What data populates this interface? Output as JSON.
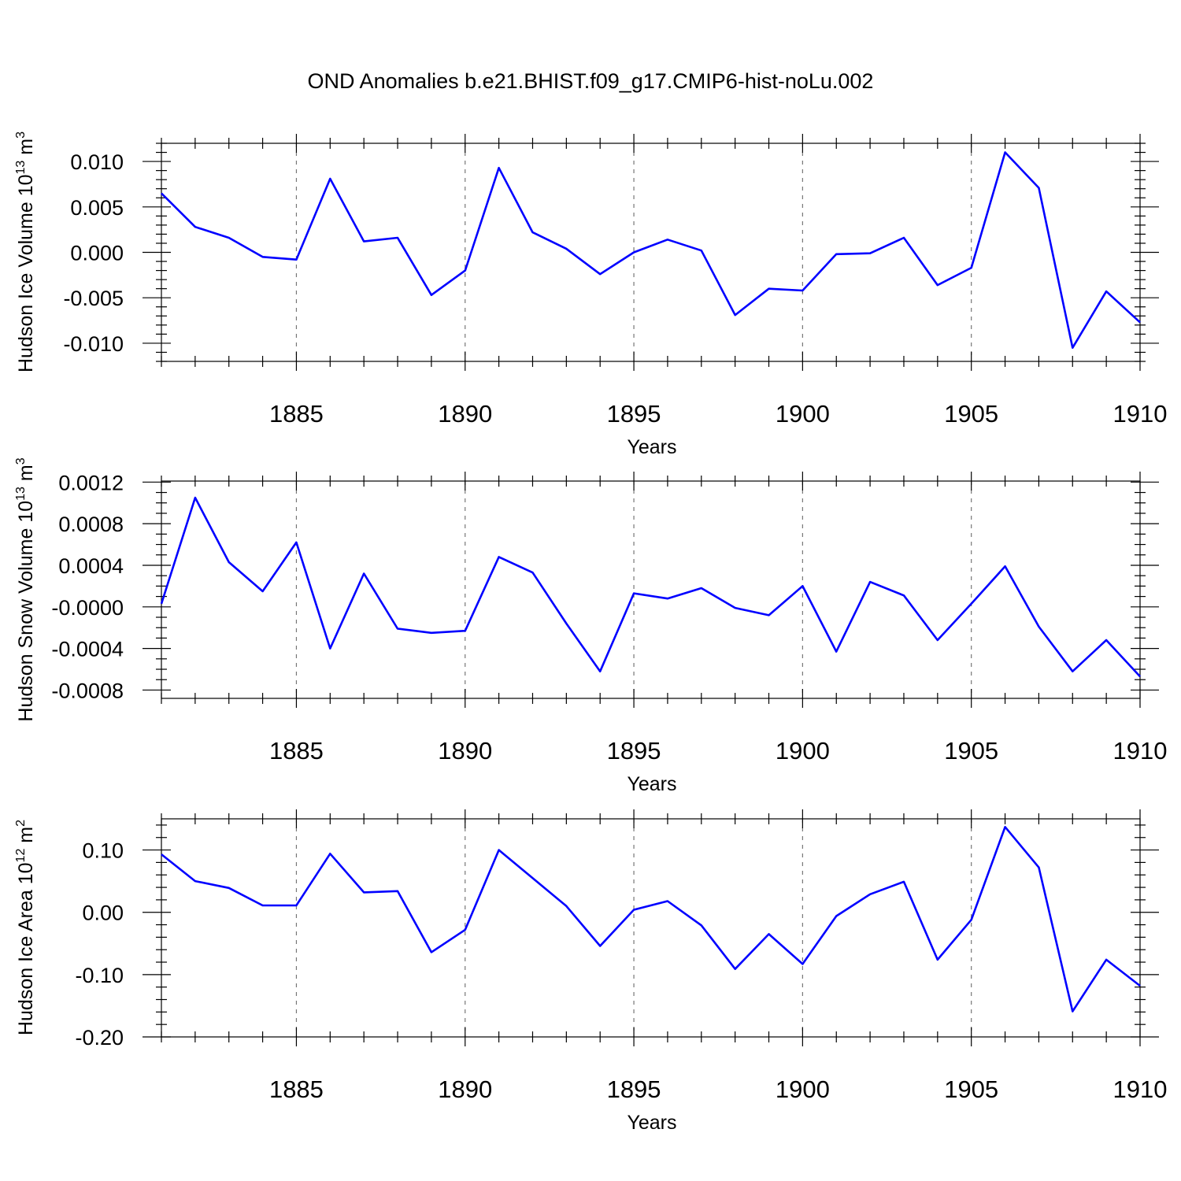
{
  "figure": {
    "title": "OND Anomalies b.e21.BHIST.f09_g17.CMIP6-hist-noLu.002"
  },
  "chart_data": [
    {
      "type": "line",
      "name": "hudson-ice-volume",
      "title": "",
      "xlabel": "Years",
      "ylabel": "Hudson Ice Volume 10",
      "ylabel_exp": "13",
      "ylabel_unit": " m",
      "ylabel_unit_exp": "3",
      "xlim": [
        1881,
        1910
      ],
      "ylim": [
        -0.012,
        0.012
      ],
      "x_ticks": [
        1885,
        1890,
        1895,
        1900,
        1905,
        1910
      ],
      "y_ticks": [
        -0.01,
        -0.005,
        0.0,
        0.005,
        0.01
      ],
      "y_tick_labels": [
        "-0.010",
        "-0.005",
        "0.000",
        "0.005",
        "0.010"
      ],
      "y_minor_step": 0.001,
      "grid": "vertical dashed at major x ticks",
      "series": [
        {
          "name": "Hudson Ice Volume",
          "color": "#0000ff",
          "x": [
            1881,
            1882,
            1883,
            1884,
            1885,
            1886,
            1887,
            1888,
            1889,
            1890,
            1891,
            1892,
            1893,
            1894,
            1895,
            1896,
            1897,
            1898,
            1899,
            1900,
            1901,
            1902,
            1903,
            1904,
            1905,
            1906,
            1907,
            1908,
            1909,
            1910
          ],
          "values": [
            0.0065,
            0.0028,
            0.0016,
            -0.0005,
            -0.0008,
            0.0081,
            0.0012,
            0.0016,
            -0.0047,
            -0.002,
            0.0093,
            0.0022,
            0.0004,
            -0.0024,
            0.0,
            0.0014,
            0.0002,
            -0.0069,
            -0.004,
            -0.0042,
            -0.0002,
            -0.0001,
            0.0016,
            -0.0036,
            -0.0017,
            0.011,
            0.0071,
            -0.0105,
            -0.0043,
            -0.0077
          ]
        }
      ]
    },
    {
      "type": "line",
      "name": "hudson-snow-volume",
      "title": "",
      "xlabel": "Years",
      "ylabel": "Hudson Snow Volume 10",
      "ylabel_exp": "13",
      "ylabel_unit": " m",
      "ylabel_unit_exp": "3",
      "xlim": [
        1881,
        1910
      ],
      "ylim": [
        -0.00088,
        0.00121
      ],
      "x_ticks": [
        1885,
        1890,
        1895,
        1900,
        1905,
        1910
      ],
      "y_ticks": [
        -0.0008,
        -0.0004,
        0.0,
        0.0004,
        0.0008,
        0.0012
      ],
      "y_tick_labels": [
        "-0.0008",
        "-0.0004",
        "-0.0000",
        "0.0004",
        "0.0008",
        "0.0012"
      ],
      "y_minor_step": 0.0001,
      "grid": "vertical dashed at major x ticks",
      "series": [
        {
          "name": "Hudson Snow Volume",
          "color": "#0000ff",
          "x": [
            1881,
            1882,
            1883,
            1884,
            1885,
            1886,
            1887,
            1888,
            1889,
            1890,
            1891,
            1892,
            1893,
            1894,
            1895,
            1896,
            1897,
            1898,
            1899,
            1900,
            1901,
            1902,
            1903,
            1904,
            1905,
            1906,
            1907,
            1908,
            1909,
            1910
          ],
          "values": [
            3e-05,
            0.00105,
            0.00043,
            0.00015,
            0.00062,
            -0.0004,
            0.00032,
            -0.00021,
            -0.00025,
            -0.00023,
            0.00048,
            0.00033,
            -0.00016,
            -0.00062,
            0.00013,
            8e-05,
            0.00018,
            -1e-05,
            -8e-05,
            0.0002,
            -0.00043,
            0.00024,
            0.00011,
            -0.00032,
            3e-05,
            0.00039,
            -0.00019,
            -0.00062,
            -0.00032,
            -0.00067
          ]
        }
      ]
    },
    {
      "type": "line",
      "name": "hudson-ice-area",
      "title": "",
      "xlabel": "Years",
      "ylabel": "Hudson Ice Area 10",
      "ylabel_exp": "12",
      "ylabel_unit": " m",
      "ylabel_unit_exp": "2",
      "xlim": [
        1881,
        1910
      ],
      "ylim": [
        -0.2,
        0.15
      ],
      "x_ticks": [
        1885,
        1890,
        1895,
        1900,
        1905,
        1910
      ],
      "y_ticks": [
        -0.2,
        -0.1,
        0.0,
        0.1
      ],
      "y_tick_labels": [
        "-0.20",
        "-0.10",
        "0.00",
        "0.10"
      ],
      "y_minor_step": 0.02,
      "grid": "vertical dashed at major x ticks",
      "series": [
        {
          "name": "Hudson Ice Area",
          "color": "#0000ff",
          "x": [
            1881,
            1882,
            1883,
            1884,
            1885,
            1886,
            1887,
            1888,
            1889,
            1890,
            1891,
            1892,
            1893,
            1894,
            1895,
            1896,
            1897,
            1898,
            1899,
            1900,
            1901,
            1902,
            1903,
            1904,
            1905,
            1906,
            1907,
            1908,
            1909,
            1910
          ],
          "values": [
            0.093,
            0.05,
            0.039,
            0.011,
            0.011,
            0.094,
            0.032,
            0.034,
            -0.064,
            -0.028,
            0.1,
            0.055,
            0.01,
            -0.054,
            0.004,
            0.018,
            -0.021,
            -0.091,
            -0.035,
            -0.083,
            -0.006,
            0.029,
            0.049,
            -0.076,
            -0.012,
            0.137,
            0.072,
            -0.159,
            -0.076,
            -0.118
          ]
        }
      ]
    }
  ]
}
